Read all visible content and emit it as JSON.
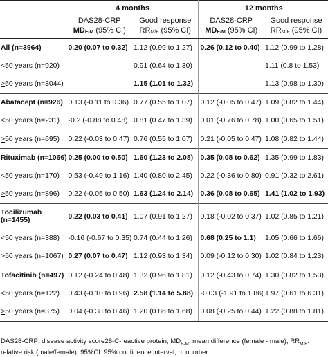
{
  "header": {
    "period1": "4 months",
    "period2": "12 months",
    "col_das": "DAS28-CRP",
    "col_das_sub_pre": "MD",
    "col_das_sub": "F-M",
    "col_das_sub_post": " (95% CI)",
    "col_good": "Good response",
    "col_good_sub_pre": "RR",
    "col_good_sub": "M/F",
    "col_good_sub_post": " (95% CI)"
  },
  "rows": [
    {
      "label": "All (n=3964)",
      "label_bold": true,
      "group": true,
      "tall": false,
      "d4": "0.20 (0.07 to 0.32)",
      "d4b": true,
      "g4": "1.12 (0.99 to 1.27)",
      "g4b": false,
      "d12": "0.26 (0.12 to 0.40)",
      "d12b": true,
      "g12": "1.12 (0.99 to 1.28)",
      "g12b": false
    },
    {
      "label_pre": "<",
      "label": "50 years (n=920)",
      "label_bold": false,
      "group": false,
      "tall": false,
      "d4": "",
      "d4b": false,
      "g4": "0.91 (0.64 to 1.30)",
      "g4b": false,
      "d12": "",
      "d12b": false,
      "g12": "1.11 (0.8 to 1.53)",
      "g12b": false
    },
    {
      "label_pre": ">",
      "label": "50 years (n=3044)",
      "label_bold": false,
      "group": false,
      "tall": false,
      "d4": "",
      "d4b": false,
      "g4": "1.15 (1.01 to 1.32)",
      "g4b": true,
      "d12": "",
      "d12b": false,
      "g12": "1.13 (0.98 to 1.30)",
      "g12b": false
    },
    {
      "label": "Abatacept (n=926)",
      "label_bold": true,
      "group": true,
      "tall": false,
      "d4": "0.13 (-0.11 to 0.36)",
      "d4b": false,
      "g4": "0.77 (0.55 to 1.07)",
      "g4b": false,
      "d12": "0.12 (-0.05 to 0.47)",
      "d12b": false,
      "g12": "1.09 (0.82 to 1.44)",
      "g12b": false
    },
    {
      "label_pre": "<",
      "label": "50 years (n=231)",
      "label_bold": false,
      "group": false,
      "tall": false,
      "d4": "-0.2 (-0.88 to 0.48)",
      "d4b": false,
      "g4": "0.81 (0.47 to 1.39)",
      "g4b": false,
      "d12": "0.01 (-0.76 to 0.78)",
      "d12b": false,
      "g12": "1.00 (0.65 to 1.51)",
      "g12b": false
    },
    {
      "label_pre": ">",
      "label": "50 years (n=695)",
      "label_bold": false,
      "group": false,
      "tall": false,
      "d4": "0.22 (-0.03 to 0.47)",
      "d4b": false,
      "g4": "0.76 (0.55 to 1.07)",
      "g4b": false,
      "d12": "0.21 (-0.05 to 0.47)",
      "d12b": false,
      "g12": "1.08 (0.82 to 1.44)",
      "g12b": false
    },
    {
      "label": "Rituximab (n=1066)",
      "label_bold": true,
      "group": true,
      "tall": false,
      "d4": "0.25 (0.00 to 0.50)",
      "d4b": true,
      "g4": "1.60 (1.23 to 2.08)",
      "g4b": true,
      "d12": "0.35 (0.08 to 0.62)",
      "d12b": true,
      "g12": "1.35 (0.99 to 1.83)",
      "g12b": false
    },
    {
      "label_pre": "<",
      "label": "50 years (n=170)",
      "label_bold": false,
      "group": false,
      "tall": false,
      "d4": "0.53 (-0.49 to 1.16)",
      "d4b": false,
      "g4": "1.40 (0.80 to 2.45)",
      "g4b": false,
      "d12": "0.22 (-0.36 to 0.80)",
      "d12b": false,
      "g12": "0.91 (0.32 to 2.61)",
      "g12b": false
    },
    {
      "label_pre": ">",
      "label": "50 years (n=896)",
      "label_bold": false,
      "group": false,
      "tall": false,
      "d4": "0.22 (-0.05 to 0.50)",
      "d4b": false,
      "g4": "1.63 (1.24 to 2.14)",
      "g4b": true,
      "d12": "0.36 (0.08 to 0.65)",
      "d12b": true,
      "g12": "1.41 (1.02 to 1.93)",
      "g12b": true
    },
    {
      "label": "Tocilizumab",
      "label2": "(n=1455)",
      "label_bold": true,
      "group": true,
      "tall": true,
      "d4": "0.22 (0.03 to 0.41)",
      "d4b": true,
      "g4": "1.07 (0.91 to 1.27)",
      "g4b": false,
      "d12": "0.18 (-0.02 to 0.37)",
      "d12b": false,
      "g12": "1.02 (0.85 to 1.21)",
      "g12b": false
    },
    {
      "label_pre": "<",
      "label": "50 years (n=388)",
      "label_bold": false,
      "group": false,
      "tall": false,
      "d4": "-0.16 (-0.67 to 0.35)",
      "d4b": false,
      "g4": "0.74 (0.44 to 1.26)",
      "g4b": false,
      "d12": "0.68 (0.25 to 1.1)",
      "d12b": true,
      "g12": "1.05 (0.66 to 1.66)",
      "g12b": false
    },
    {
      "label_pre": ">",
      "label": "50 years (n=1067)",
      "label_bold": false,
      "group": false,
      "tall": false,
      "d4": "0.27 (0.07 to 0.47)",
      "d4b": true,
      "g4": "1.12 (0.93 to 1.34)",
      "g4b": false,
      "d12": "0.09 (-0.12 to 0.30)",
      "d12b": false,
      "g12": "1.02 (0.84 to 1.23)",
      "g12b": false
    },
    {
      "label": "Tofacitinib (n=497)",
      "label_bold": true,
      "group": true,
      "tall": false,
      "d4": "0.12 (-0.24 to 0.48)",
      "d4b": false,
      "g4": "1.32 (0.96 to 1.81)",
      "g4b": false,
      "d12": "0.12 (-0.43 to 0.74)",
      "d12b": false,
      "g12": "1.30 (0.82 to 1.53)",
      "g12b": false
    },
    {
      "label_pre": "<",
      "label": "50 years (n=122)",
      "label_bold": false,
      "group": false,
      "tall": false,
      "d4": "0.43 (-0.10 to 0.96)",
      "d4b": false,
      "g4": "2.58 (1.14 to 5.88)",
      "g4b": true,
      "d12": "-0.03 (-1.91 to 1.86)",
      "d12b": false,
      "g12": "1.97 (0.61 to 6.31)",
      "g12b": false
    },
    {
      "label_pre": ">",
      "label": "50 years (n=375)",
      "label_bold": false,
      "group": false,
      "tall": false,
      "d4": "0.04 (-0.38 to 0.46)",
      "d4b": false,
      "g4": "1.20 (0.86 to 1.68)",
      "g4b": false,
      "d12": "0.08 (-0.25 to 0.44)",
      "d12b": false,
      "g12": "1.22 (0.88 to 1.81)",
      "g12b": false
    }
  ],
  "footnote": {
    "part1": "DAS28-CRP: disease activity score28-C-reactive protein, MD",
    "sub1": "F-M",
    "part2": ": mean difference (female - male), RR",
    "sub2": "M/F",
    "part3": ": relative risk (male/female), 95%CI: 95% confidence interval, n: number."
  }
}
